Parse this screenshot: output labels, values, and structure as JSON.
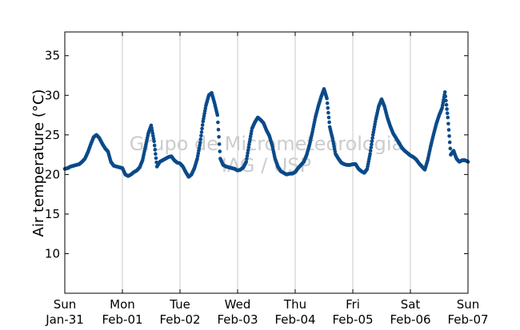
{
  "chart_data": {
    "type": "scatter",
    "title": "",
    "xlabel": "",
    "ylabel": "Air temperature (°C)",
    "ylim": [
      5,
      38
    ],
    "yticks": [
      10,
      15,
      20,
      25,
      30,
      35
    ],
    "xlim": [
      0,
      7
    ],
    "xticks": [
      {
        "x": 0,
        "day": "Sun",
        "date": "Jan-31"
      },
      {
        "x": 1,
        "day": "Mon",
        "date": "Feb-01"
      },
      {
        "x": 2,
        "day": "Tue",
        "date": "Feb-02"
      },
      {
        "x": 3,
        "day": "Wed",
        "date": "Feb-03"
      },
      {
        "x": 4,
        "day": "Thu",
        "date": "Feb-04"
      },
      {
        "x": 5,
        "day": "Fri",
        "date": "Feb-05"
      },
      {
        "x": 6,
        "day": "Sat",
        "date": "Feb-06"
      },
      {
        "x": 7,
        "day": "Sun",
        "date": "Feb-07"
      }
    ],
    "grid": {
      "vertical": true,
      "horizontal": false
    },
    "marker_color": "#0b4a8a",
    "watermark": [
      "Grupo de Micrometeorologia",
      "IAG / USP"
    ],
    "series": [
      {
        "points": [
          [
            0.0,
            20.7
          ],
          [
            0.05,
            20.8
          ],
          [
            0.1,
            21.0
          ],
          [
            0.15,
            21.1
          ],
          [
            0.2,
            21.2
          ],
          [
            0.25,
            21.3
          ],
          [
            0.3,
            21.6
          ],
          [
            0.35,
            22.0
          ],
          [
            0.4,
            22.8
          ],
          [
            0.45,
            23.8
          ],
          [
            0.5,
            24.7
          ],
          [
            0.55,
            25.0
          ],
          [
            0.6,
            24.6
          ],
          [
            0.65,
            23.9
          ],
          [
            0.7,
            23.3
          ],
          [
            0.75,
            22.9
          ],
          [
            0.8,
            21.6
          ],
          [
            0.85,
            21.1
          ],
          [
            0.9,
            21.0
          ],
          [
            0.95,
            20.9
          ],
          [
            1.0,
            20.8
          ],
          [
            1.05,
            20.0
          ],
          [
            1.1,
            19.8
          ],
          [
            1.15,
            20.0
          ],
          [
            1.2,
            20.3
          ],
          [
            1.25,
            20.5
          ],
          [
            1.3,
            20.9
          ],
          [
            1.35,
            21.8
          ],
          [
            1.4,
            23.5
          ],
          [
            1.45,
            25.2
          ],
          [
            1.5,
            26.2
          ],
          [
            1.55,
            24.2
          ],
          [
            1.6,
            21.0
          ],
          [
            1.65,
            21.6
          ],
          [
            1.7,
            21.8
          ],
          [
            1.75,
            22.0
          ],
          [
            1.8,
            22.2
          ],
          [
            1.85,
            22.3
          ],
          [
            1.9,
            21.8
          ],
          [
            1.95,
            21.5
          ],
          [
            2.0,
            21.4
          ],
          [
            2.05,
            21.0
          ],
          [
            2.1,
            20.3
          ],
          [
            2.15,
            19.7
          ],
          [
            2.2,
            20.0
          ],
          [
            2.25,
            20.8
          ],
          [
            2.3,
            22.0
          ],
          [
            2.35,
            24.0
          ],
          [
            2.4,
            26.7
          ],
          [
            2.45,
            28.7
          ],
          [
            2.5,
            30.0
          ],
          [
            2.55,
            30.3
          ],
          [
            2.6,
            29.0
          ],
          [
            2.65,
            27.5
          ],
          [
            2.7,
            22.0
          ],
          [
            2.75,
            21.2
          ],
          [
            2.8,
            21.0
          ],
          [
            2.85,
            20.9
          ],
          [
            2.9,
            20.8
          ],
          [
            2.95,
            20.7
          ],
          [
            3.0,
            20.5
          ],
          [
            3.05,
            20.6
          ],
          [
            3.1,
            20.9
          ],
          [
            3.15,
            21.6
          ],
          [
            3.2,
            23.8
          ],
          [
            3.25,
            25.8
          ],
          [
            3.3,
            26.6
          ],
          [
            3.35,
            27.2
          ],
          [
            3.4,
            26.9
          ],
          [
            3.45,
            26.5
          ],
          [
            3.5,
            25.6
          ],
          [
            3.55,
            24.9
          ],
          [
            3.6,
            23.7
          ],
          [
            3.65,
            22.0
          ],
          [
            3.7,
            21.0
          ],
          [
            3.75,
            20.4
          ],
          [
            3.8,
            20.2
          ],
          [
            3.85,
            20.0
          ],
          [
            3.9,
            20.1
          ],
          [
            3.95,
            20.1
          ],
          [
            4.0,
            20.3
          ],
          [
            4.05,
            20.8
          ],
          [
            4.1,
            21.2
          ],
          [
            4.15,
            21.6
          ],
          [
            4.2,
            22.5
          ],
          [
            4.25,
            23.8
          ],
          [
            4.3,
            25.4
          ],
          [
            4.35,
            27.2
          ],
          [
            4.4,
            28.6
          ],
          [
            4.45,
            29.8
          ],
          [
            4.5,
            30.8
          ],
          [
            4.55,
            29.6
          ],
          [
            4.6,
            26.0
          ],
          [
            4.65,
            24.5
          ],
          [
            4.7,
            22.6
          ],
          [
            4.75,
            22.0
          ],
          [
            4.8,
            21.5
          ],
          [
            4.85,
            21.3
          ],
          [
            4.9,
            21.2
          ],
          [
            4.95,
            21.2
          ],
          [
            5.0,
            21.3
          ],
          [
            5.05,
            21.3
          ],
          [
            5.1,
            20.7
          ],
          [
            5.15,
            20.4
          ],
          [
            5.2,
            20.2
          ],
          [
            5.25,
            20.7
          ],
          [
            5.3,
            22.6
          ],
          [
            5.35,
            25.0
          ],
          [
            5.4,
            27.0
          ],
          [
            5.45,
            28.6
          ],
          [
            5.5,
            29.5
          ],
          [
            5.55,
            28.6
          ],
          [
            5.6,
            27.2
          ],
          [
            5.65,
            26.1
          ],
          [
            5.7,
            25.2
          ],
          [
            5.75,
            24.6
          ],
          [
            5.8,
            24.0
          ],
          [
            5.85,
            23.4
          ],
          [
            5.9,
            23.0
          ],
          [
            5.95,
            22.7
          ],
          [
            6.0,
            22.4
          ],
          [
            6.05,
            22.2
          ],
          [
            6.1,
            21.9
          ],
          [
            6.15,
            21.4
          ],
          [
            6.2,
            21.0
          ],
          [
            6.25,
            20.6
          ],
          [
            6.3,
            21.8
          ],
          [
            6.35,
            23.5
          ],
          [
            6.4,
            25.0
          ],
          [
            6.45,
            26.4
          ],
          [
            6.5,
            27.5
          ],
          [
            6.55,
            28.4
          ],
          [
            6.6,
            30.4
          ],
          [
            6.65,
            27.2
          ],
          [
            6.7,
            22.5
          ],
          [
            6.75,
            23.0
          ],
          [
            6.8,
            22.0
          ],
          [
            6.85,
            21.6
          ],
          [
            6.9,
            21.8
          ],
          [
            6.95,
            21.8
          ],
          [
            7.0,
            21.6
          ]
        ]
      }
    ]
  }
}
